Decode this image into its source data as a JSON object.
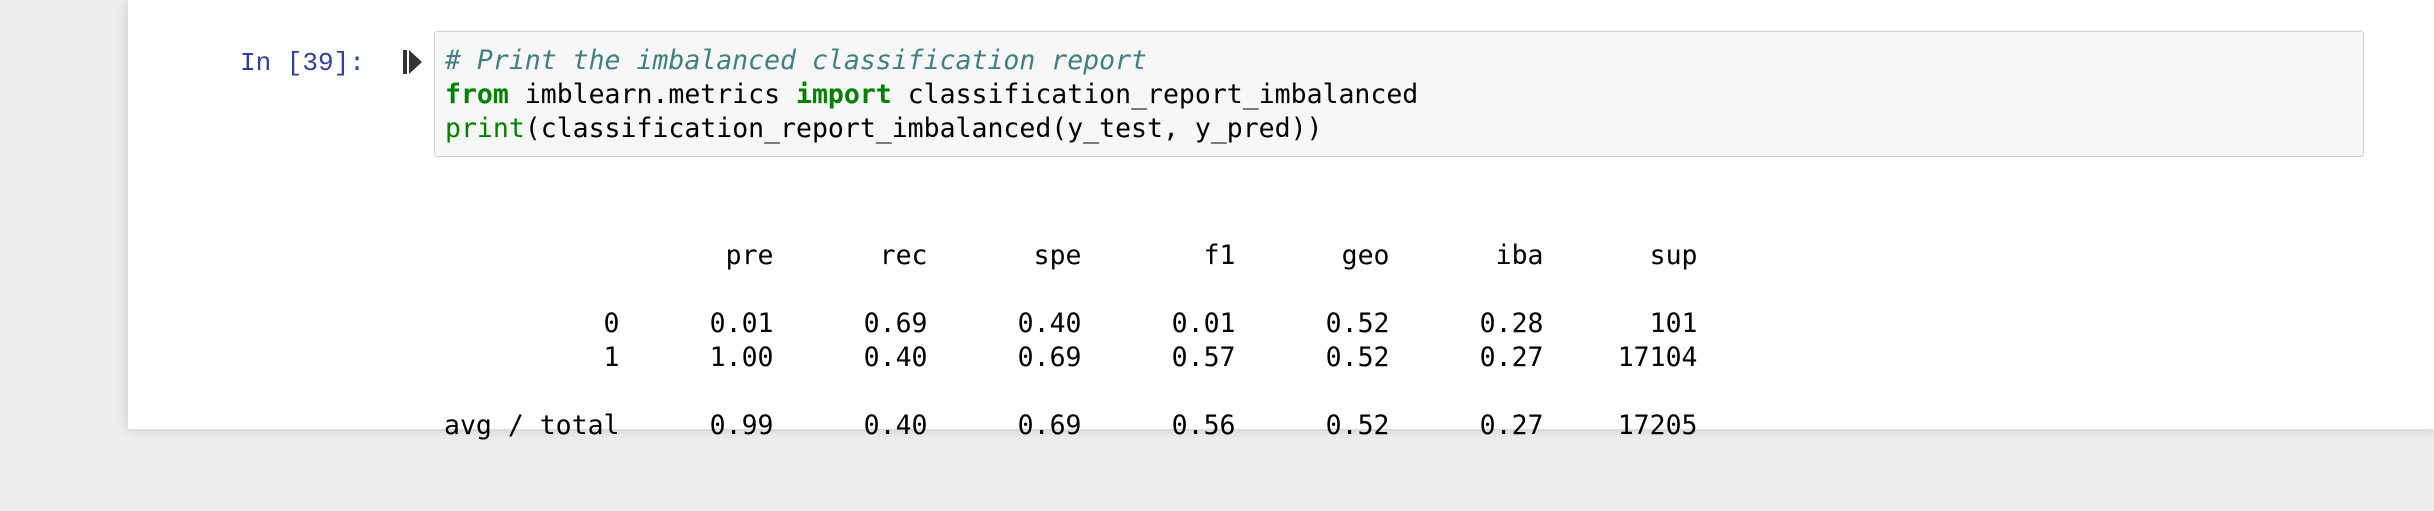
{
  "cell": {
    "prompt": "In [39]:",
    "code": {
      "line1": {
        "comment": "# Print the imbalanced classification report"
      },
      "line2": {
        "kw_from": "from",
        "module": " imblearn.metrics ",
        "kw_import": "import",
        "name": " classification_report_imbalanced"
      },
      "line3": {
        "builtin": "print",
        "rest": "(classification_report_imbalanced(y_test, y_pred))"
      }
    }
  },
  "output": {
    "headers": [
      "pre",
      "rec",
      "spe",
      "f1",
      "geo",
      "iba",
      "sup"
    ],
    "rows": [
      {
        "label": "0",
        "values": [
          "0.01",
          "0.69",
          "0.40",
          "0.01",
          "0.52",
          "0.28",
          "101"
        ]
      },
      {
        "label": "1",
        "values": [
          "1.00",
          "0.40",
          "0.69",
          "0.57",
          "0.52",
          "0.27",
          "17104"
        ]
      }
    ],
    "total": {
      "label": "avg / total",
      "values": [
        "0.99",
        "0.40",
        "0.69",
        "0.56",
        "0.52",
        "0.27",
        "17205"
      ]
    }
  },
  "icons": {
    "run": "step-forward-icon"
  },
  "colors": {
    "prompt": "#303f9f",
    "comment": "#408080",
    "keyword": "#008000",
    "input_bg": "#f7f7f7",
    "input_border": "#cfcfcf"
  }
}
